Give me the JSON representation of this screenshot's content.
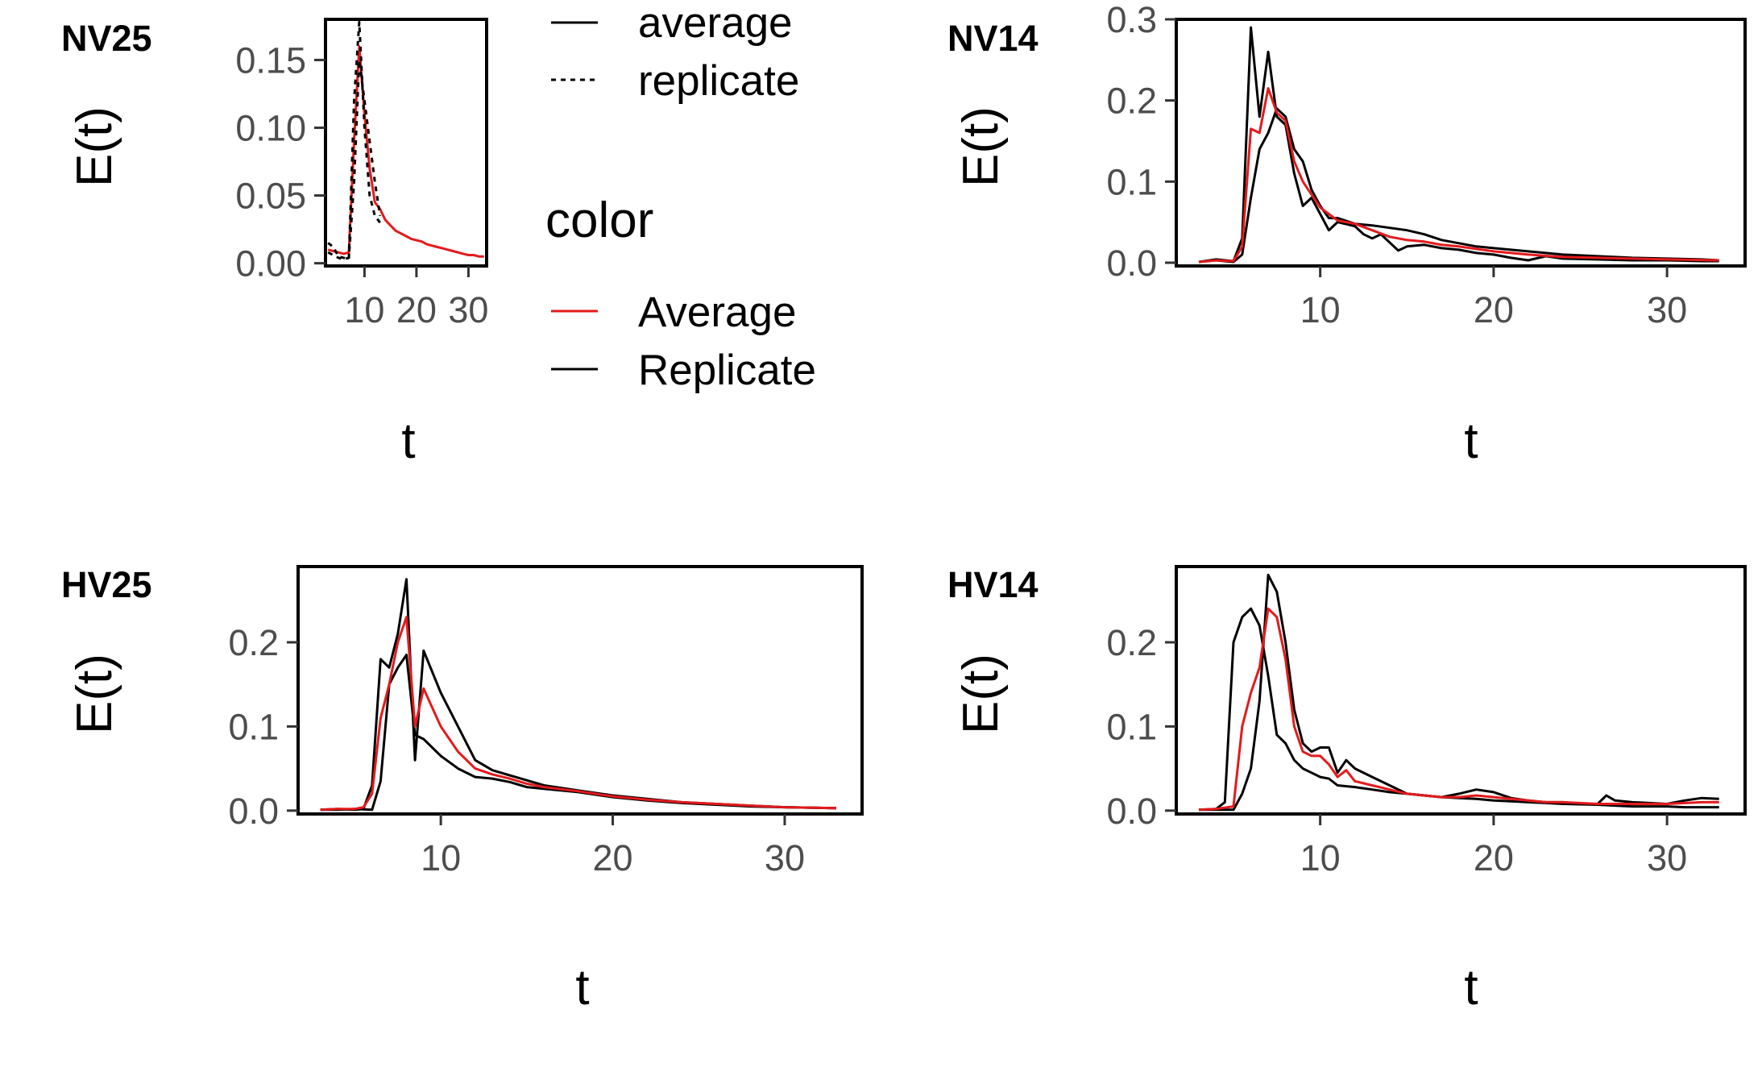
{
  "chart_data": [
    {
      "type": "line",
      "tag": "NV25",
      "xlabel": "t",
      "ylabel": "E(t)",
      "xlim": [
        2.5,
        33.5
      ],
      "ylim": [
        -0.002,
        0.18
      ],
      "xticks": [
        10,
        20,
        30
      ],
      "xtick_labels": [
        "10",
        "20",
        "30"
      ],
      "yticks": [
        0,
        0.05,
        0.1,
        0.15
      ],
      "ytick_labels": [
        "0.00",
        "0.05",
        "0.10",
        "0.15"
      ],
      "series": [
        {
          "color": "#e31a1c",
          "dash": "solid",
          "x": [
            3,
            4,
            5,
            6,
            7,
            8,
            9,
            10,
            11,
            12,
            13,
            14,
            15,
            16,
            17,
            18,
            19,
            20,
            21,
            22,
            23,
            24,
            25,
            26,
            27,
            28,
            29,
            30,
            31,
            32,
            33
          ],
          "y": [
            0.01,
            0.009,
            0.008,
            0.007,
            0.008,
            0.09,
            0.16,
            0.11,
            0.07,
            0.045,
            0.04,
            0.032,
            0.028,
            0.024,
            0.022,
            0.02,
            0.018,
            0.017,
            0.016,
            0.014,
            0.013,
            0.012,
            0.011,
            0.01,
            0.009,
            0.008,
            0.007,
            0.006,
            0.006,
            0.005,
            0.005
          ]
        },
        {
          "color": "#000000",
          "dash": "dashed",
          "x": [
            3,
            4,
            5,
            6,
            7,
            8,
            9,
            10,
            11,
            12,
            13
          ],
          "y": [
            0.015,
            0.012,
            0.005,
            0.004,
            0.003,
            0.12,
            0.178,
            0.1,
            0.05,
            0.035,
            0.03
          ]
        },
        {
          "color": "#000000",
          "dash": "dashed",
          "x": [
            3,
            4,
            5,
            6,
            7,
            8,
            9,
            10,
            11,
            12,
            13
          ],
          "y": [
            0.008,
            0.006,
            0.004,
            0.003,
            0.004,
            0.06,
            0.15,
            0.12,
            0.09,
            0.06,
            0.035
          ]
        }
      ]
    },
    {
      "type": "line",
      "tag": "NV14",
      "xlabel": "t",
      "ylabel": "E(t)",
      "xlim": [
        1.7,
        34.5
      ],
      "ylim": [
        -0.004,
        0.3
      ],
      "xticks": [
        10,
        20,
        30
      ],
      "xtick_labels": [
        "10",
        "20",
        "30"
      ],
      "yticks": [
        0,
        0.1,
        0.2,
        0.3
      ],
      "ytick_labels": [
        "0.0",
        "0.1",
        "0.2",
        "0.3"
      ],
      "series": [
        {
          "color": "#000000",
          "dash": "solid",
          "x": [
            3,
            4,
            5,
            5.5,
            6,
            6.5,
            7,
            7.5,
            8,
            8.5,
            9,
            9.5,
            10,
            10.5,
            11,
            12,
            12.5,
            13,
            13.5,
            14,
            14.5,
            15,
            16,
            17,
            18,
            19,
            20,
            21,
            22,
            23,
            24,
            26,
            28,
            30,
            32,
            33
          ],
          "y": [
            0.001,
            0.004,
            0.002,
            0.03,
            0.29,
            0.18,
            0.26,
            0.18,
            0.17,
            0.11,
            0.07,
            0.08,
            0.06,
            0.04,
            0.05,
            0.045,
            0.035,
            0.03,
            0.035,
            0.025,
            0.015,
            0.02,
            0.022,
            0.018,
            0.016,
            0.012,
            0.01,
            0.006,
            0.003,
            0.008,
            0.005,
            0.004,
            0.003,
            0.003,
            0.002,
            0.002
          ]
        },
        {
          "color": "#000000",
          "dash": "solid",
          "x": [
            3,
            4,
            5,
            5.5,
            6,
            6.5,
            7,
            7.5,
            8,
            8.5,
            9,
            9.5,
            10,
            10.5,
            11,
            12,
            13,
            14,
            15,
            16,
            17,
            18,
            19,
            20,
            21,
            22,
            23,
            24,
            26,
            28,
            30,
            32,
            33
          ],
          "y": [
            0.001,
            0.003,
            0.001,
            0.01,
            0.08,
            0.14,
            0.16,
            0.19,
            0.18,
            0.14,
            0.125,
            0.09,
            0.07,
            0.055,
            0.055,
            0.048,
            0.046,
            0.043,
            0.04,
            0.035,
            0.028,
            0.024,
            0.02,
            0.018,
            0.016,
            0.014,
            0.012,
            0.01,
            0.008,
            0.006,
            0.005,
            0.004,
            0.003
          ]
        },
        {
          "color": "#e31a1c",
          "dash": "solid",
          "x": [
            3,
            4,
            5,
            5.5,
            6,
            6.5,
            7,
            7.5,
            8,
            8.5,
            9,
            10,
            11,
            12,
            13,
            14,
            15,
            16,
            17,
            18,
            19,
            20,
            22,
            24,
            26,
            28,
            30,
            33
          ],
          "y": [
            0.001,
            0.003,
            0.002,
            0.02,
            0.165,
            0.16,
            0.215,
            0.185,
            0.175,
            0.125,
            0.1,
            0.068,
            0.052,
            0.048,
            0.04,
            0.032,
            0.028,
            0.026,
            0.022,
            0.02,
            0.017,
            0.014,
            0.01,
            0.007,
            0.006,
            0.005,
            0.004,
            0.003
          ]
        }
      ]
    },
    {
      "type": "line",
      "tag": "HV25",
      "xlabel": "t",
      "ylabel": "E(t)",
      "xlim": [
        1.7,
        34.5
      ],
      "ylim": [
        -0.004,
        0.29
      ],
      "xticks": [
        10,
        20,
        30
      ],
      "xtick_labels": [
        "10",
        "20",
        "30"
      ],
      "yticks": [
        0,
        0.1,
        0.2
      ],
      "ytick_labels": [
        "0.0",
        "0.1",
        "0.2"
      ],
      "series": [
        {
          "color": "#000000",
          "dash": "solid",
          "x": [
            3,
            4,
            5,
            5.5,
            6,
            6.5,
            7,
            7.5,
            8,
            8.5,
            9,
            10,
            11,
            12,
            13,
            14,
            15,
            16,
            18,
            20,
            22,
            24,
            26,
            28,
            30,
            33
          ],
          "y": [
            0.001,
            0.002,
            0.001,
            0.002,
            0.03,
            0.18,
            0.17,
            0.21,
            0.275,
            0.06,
            0.19,
            0.14,
            0.1,
            0.06,
            0.048,
            0.042,
            0.036,
            0.03,
            0.024,
            0.018,
            0.014,
            0.01,
            0.008,
            0.006,
            0.004,
            0.003
          ]
        },
        {
          "color": "#000000",
          "dash": "solid",
          "x": [
            3,
            4,
            5,
            6,
            6.5,
            7,
            7.5,
            8,
            8.5,
            9,
            10,
            11,
            12,
            13,
            14,
            15,
            16,
            18,
            20,
            22,
            24,
            26,
            28,
            30,
            33
          ],
          "y": [
            0.001,
            0.001,
            0.002,
            0.001,
            0.035,
            0.15,
            0.17,
            0.185,
            0.09,
            0.085,
            0.065,
            0.05,
            0.04,
            0.038,
            0.034,
            0.028,
            0.026,
            0.022,
            0.016,
            0.012,
            0.009,
            0.007,
            0.005,
            0.004,
            0.003
          ]
        },
        {
          "color": "#e31a1c",
          "dash": "solid",
          "x": [
            3,
            4,
            5,
            5.5,
            6,
            6.5,
            7,
            7.5,
            8,
            8.5,
            9,
            10,
            11,
            12,
            13,
            14,
            15,
            16,
            18,
            20,
            22,
            24,
            26,
            28,
            30,
            33
          ],
          "y": [
            0.001,
            0.002,
            0.002,
            0.004,
            0.02,
            0.11,
            0.15,
            0.2,
            0.23,
            0.1,
            0.145,
            0.1,
            0.07,
            0.05,
            0.043,
            0.038,
            0.032,
            0.028,
            0.023,
            0.017,
            0.013,
            0.01,
            0.008,
            0.006,
            0.004,
            0.003
          ]
        }
      ]
    },
    {
      "type": "line",
      "tag": "HV14",
      "xlabel": "t",
      "ylabel": "E(t)",
      "xlim": [
        1.7,
        34.5
      ],
      "ylim": [
        -0.004,
        0.29
      ],
      "xticks": [
        10,
        20,
        30
      ],
      "xtick_labels": [
        "10",
        "20",
        "30"
      ],
      "yticks": [
        0,
        0.1,
        0.2
      ],
      "ytick_labels": [
        "0.0",
        "0.1",
        "0.2"
      ],
      "series": [
        {
          "color": "#000000",
          "dash": "solid",
          "x": [
            3,
            4,
            4.5,
            5,
            5.5,
            6,
            6.5,
            7,
            7.5,
            8,
            8.5,
            9,
            9.5,
            10,
            10.5,
            11,
            12,
            13,
            14,
            15,
            16,
            17,
            18,
            19,
            20,
            21,
            22,
            23,
            24,
            26,
            27,
            28,
            30,
            31,
            32,
            33
          ],
          "y": [
            0.001,
            0.002,
            0.01,
            0.2,
            0.23,
            0.24,
            0.22,
            0.16,
            0.09,
            0.08,
            0.06,
            0.05,
            0.045,
            0.04,
            0.038,
            0.03,
            0.028,
            0.025,
            0.022,
            0.02,
            0.018,
            0.016,
            0.015,
            0.014,
            0.012,
            0.011,
            0.01,
            0.009,
            0.008,
            0.007,
            0.006,
            0.005,
            0.005,
            0.004,
            0.004,
            0.004
          ]
        },
        {
          "color": "#000000",
          "dash": "solid",
          "x": [
            3,
            4,
            5,
            5.5,
            6,
            6.5,
            7,
            7.5,
            8,
            8.5,
            9,
            9.5,
            10,
            10.5,
            11,
            11.5,
            12,
            13,
            14,
            15,
            16,
            17,
            18,
            19,
            20,
            21,
            22,
            23,
            24,
            25,
            26,
            26.5,
            27,
            28,
            30,
            31,
            32,
            33
          ],
          "y": [
            0.001,
            0.001,
            0.001,
            0.02,
            0.05,
            0.13,
            0.28,
            0.26,
            0.2,
            0.12,
            0.08,
            0.07,
            0.075,
            0.075,
            0.045,
            0.06,
            0.05,
            0.04,
            0.03,
            0.02,
            0.018,
            0.016,
            0.02,
            0.025,
            0.022,
            0.015,
            0.012,
            0.01,
            0.01,
            0.008,
            0.008,
            0.018,
            0.012,
            0.01,
            0.008,
            0.012,
            0.015,
            0.014
          ]
        },
        {
          "color": "#e31a1c",
          "dash": "solid",
          "x": [
            3,
            4,
            5,
            5.5,
            6,
            6.5,
            7,
            7.5,
            8,
            8.5,
            9,
            9.5,
            10,
            10.5,
            11,
            11.5,
            12,
            13,
            14,
            15,
            16,
            17,
            18,
            19,
            20,
            21,
            22,
            23,
            24,
            26,
            28,
            30,
            32,
            33
          ],
          "y": [
            0.001,
            0.002,
            0.005,
            0.1,
            0.14,
            0.17,
            0.24,
            0.23,
            0.18,
            0.1,
            0.07,
            0.065,
            0.065,
            0.055,
            0.04,
            0.048,
            0.035,
            0.03,
            0.025,
            0.02,
            0.018,
            0.016,
            0.016,
            0.018,
            0.016,
            0.014,
            0.012,
            0.01,
            0.01,
            0.008,
            0.008,
            0.008,
            0.01,
            0.01
          ]
        }
      ]
    }
  ],
  "legend": {
    "linetype_items": [
      {
        "label": "average",
        "dash": "solid"
      },
      {
        "label": "replicate",
        "dash": "dashed"
      }
    ],
    "color_title": "color",
    "color_items": [
      {
        "label": "Average",
        "color": "#e31a1c"
      },
      {
        "label": "Replicate",
        "color": "#000000"
      }
    ]
  }
}
